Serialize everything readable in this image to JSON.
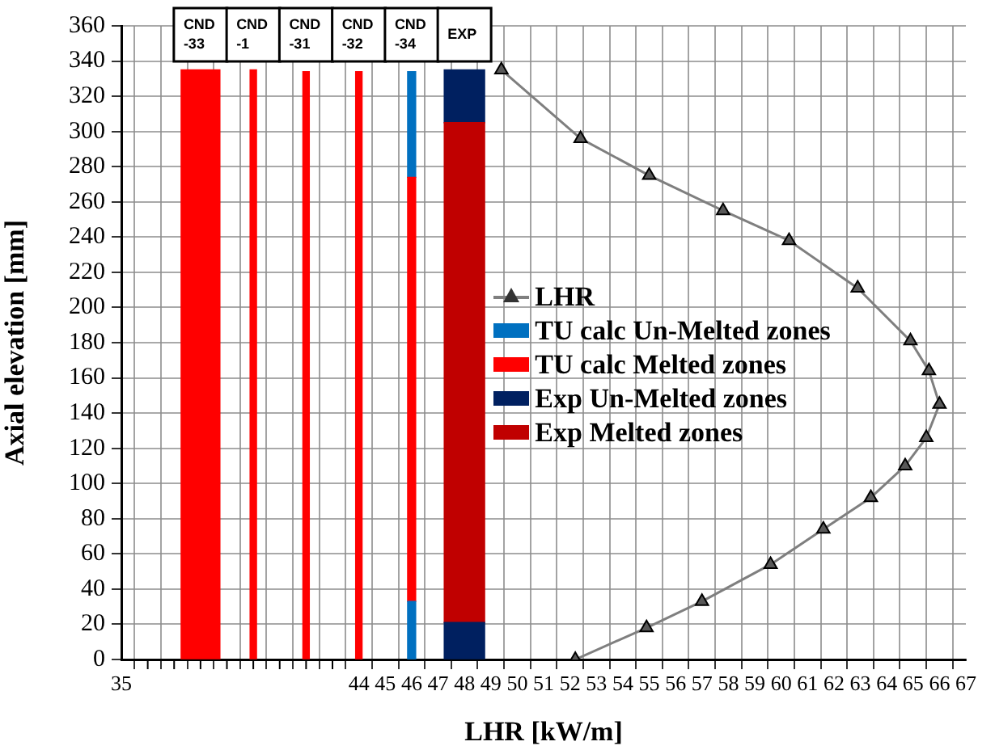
{
  "chart_data": {
    "type": "bar",
    "xlabel": "LHR [kW/m]",
    "ylabel": "Axial elevation [mm]",
    "stacked": true,
    "marker": "triangle",
    "grid": true,
    "legend": "center",
    "x": [
      38,
      40,
      42,
      44,
      46,
      48
    ],
    "series": [
      {
        "name": "LHR",
        "type": "line",
        "color": "#7f7f7f",
        "x": [
          49.4,
          52.4,
          55.0,
          57.8,
          60.3,
          62.9,
          64.9,
          65.6,
          66.0,
          65.5,
          64.7,
          63.4,
          61.6,
          59.6,
          57.0,
          54.9,
          52.2
        ],
        "values": [
          335,
          296,
          275,
          255,
          238,
          211,
          181,
          164,
          145,
          126,
          110,
          92,
          74,
          54,
          33,
          18,
          0
        ]
      },
      {
        "name": "TU calc Un-Melted zones",
        "color": "#0070c0",
        "values": [
          null,
          null,
          null,
          null,
          33,
          null
        ]
      },
      {
        "name": "TU calc Melted zones",
        "color": "#ff0000",
        "values": [
          335,
          335,
          334,
          334,
          241,
          null
        ]
      },
      {
        "color": "#0070c0",
        "values": [
          null,
          null,
          null,
          null,
          60,
          null
        ]
      },
      {
        "name": "Exp Un-Melted zones",
        "color": "#002060",
        "values": [
          null,
          null,
          null,
          null,
          null,
          21
        ]
      },
      {
        "name": "Exp Melted zones",
        "color": "#c00000",
        "values": [
          null,
          null,
          null,
          null,
          null,
          284
        ]
      },
      {
        "color": "#002060",
        "values": [
          null,
          null,
          null,
          null,
          null,
          30
        ]
      }
    ],
    "annotations": [
      {
        "text": "CND -33",
        "x": 38,
        "y": 355
      },
      {
        "text": "CND -1",
        "x": 40,
        "y": 355
      },
      {
        "text": "CND -31",
        "x": 42,
        "y": 355
      },
      {
        "text": "CND -32",
        "x": 44,
        "y": 355
      },
      {
        "text": "CND -34",
        "x": 46,
        "y": 355
      },
      {
        "text": "EXP",
        "x": 48,
        "y": 355
      }
    ],
    "xlim": [
      35,
      67
    ],
    "xticks": [
      35,
      {
        "value": 36,
        "label": null
      },
      {
        "value": 37,
        "label": null
      },
      {
        "value": 38,
        "label": null
      },
      {
        "value": 39,
        "label": null
      },
      {
        "value": 40,
        "label": null
      },
      {
        "value": 41,
        "label": null
      },
      {
        "value": 42,
        "label": null
      },
      {
        "value": 43,
        "label": null
      },
      44,
      45,
      46,
      47,
      48,
      49,
      50,
      51,
      52,
      53,
      54,
      55,
      56,
      57,
      58,
      59,
      60,
      61,
      62,
      63,
      64,
      65,
      66,
      67
    ],
    "ylim": [
      0,
      360
    ],
    "yticks": [
      0,
      20,
      40,
      60,
      80,
      100,
      120,
      140,
      160,
      180,
      200,
      220,
      240,
      260,
      280,
      300,
      320,
      340,
      360
    ]
  }
}
